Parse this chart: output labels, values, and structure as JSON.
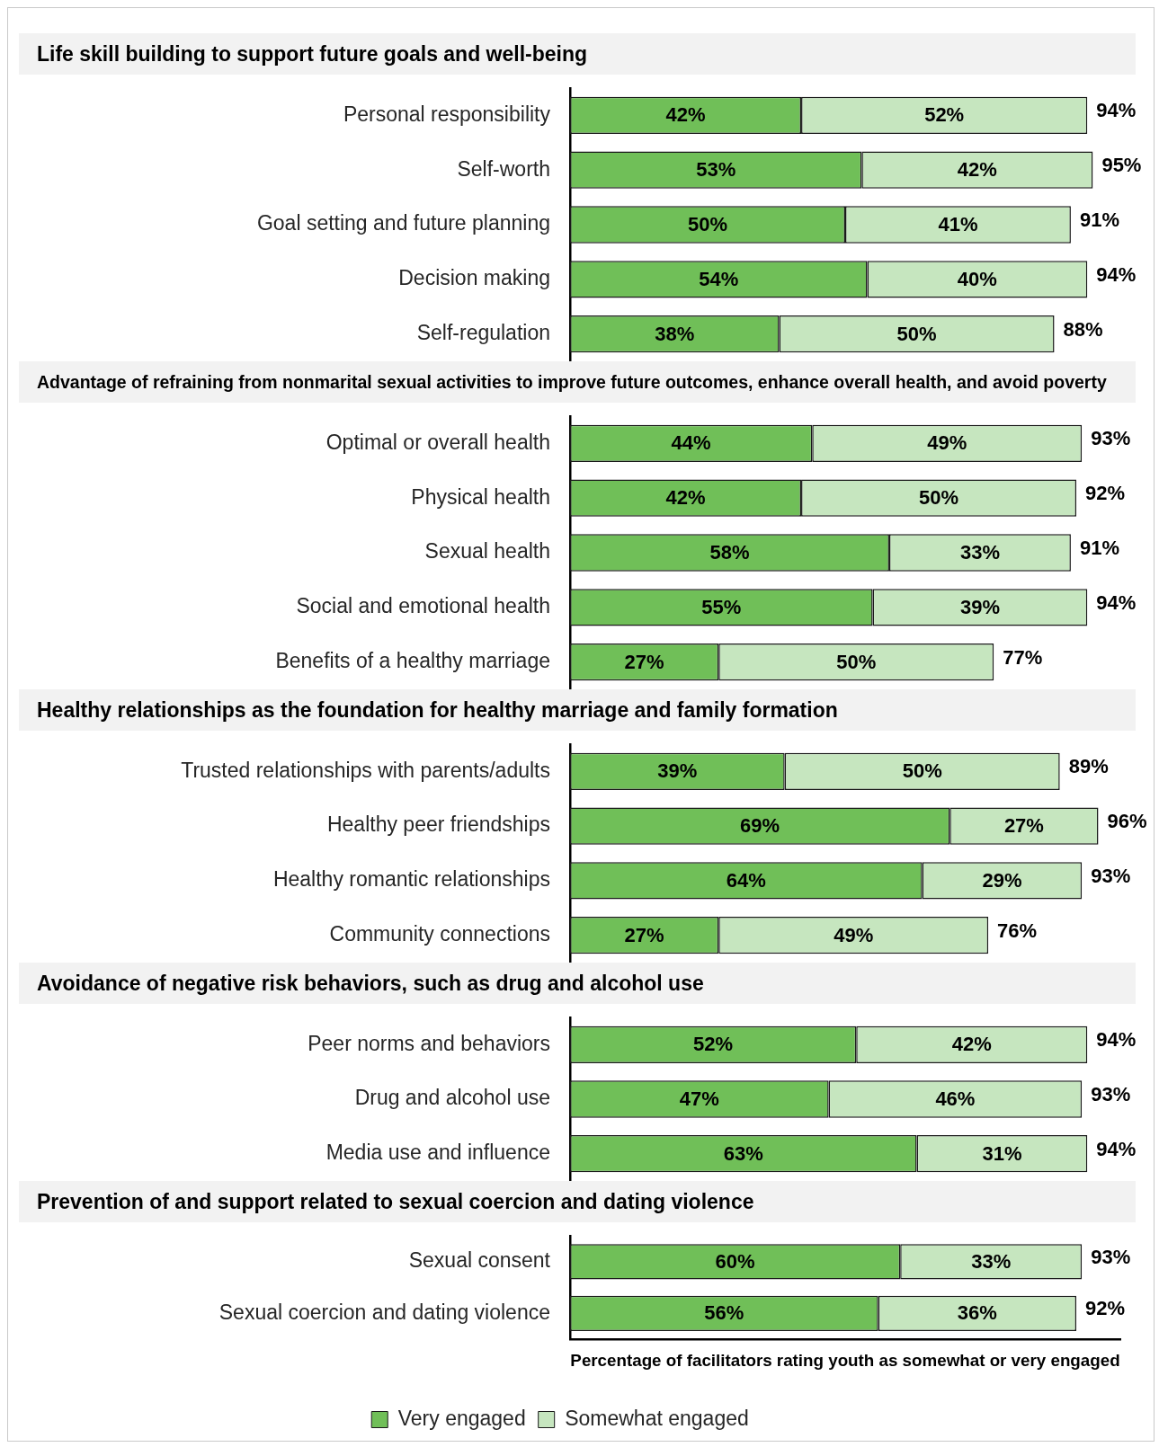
{
  "chart_data": [
    {
      "type": "bar",
      "orientation": "horizontal",
      "stacked": true,
      "title": "Life skill building to support future goals and well-being",
      "categories": [
        "Personal responsibility",
        "Self-worth",
        "Goal setting and future planning",
        "Decision making",
        "Self-regulation"
      ],
      "series": [
        {
          "color": "#70bf58",
          "values": [
            42,
            53,
            50,
            54,
            38
          ],
          "value_labels": [
            "42%",
            "53%",
            "50%",
            "54%",
            "38%"
          ]
        },
        {
          "color": "#c6e6bf",
          "values": [
            52,
            42,
            41,
            40,
            50
          ],
          "value_labels": [
            "52%",
            "42%",
            "41%",
            "40%",
            "50%"
          ]
        }
      ],
      "totals": [
        "94%",
        "95%",
        "91%",
        "94%",
        "88%"
      ],
      "tick_labels": "y",
      "grid": false,
      "legend": false
    },
    {
      "type": "bar",
      "orientation": "horizontal",
      "stacked": true,
      "title": "Advantage of refraining from nonmarital sexual activities to improve future outcomes, enhance overall health, and avoid poverty",
      "categories": [
        "Optimal or overall health",
        "Physical health",
        "Sexual health",
        "Social and emotional health",
        "Benefits of a healthy marriage"
      ],
      "series": [
        {
          "color": "#70bf58",
          "values": [
            44,
            42,
            58,
            55,
            27
          ],
          "value_labels": [
            "44%",
            "42%",
            "58%",
            "55%",
            "27%"
          ]
        },
        {
          "color": "#c6e6bf",
          "values": [
            49,
            50,
            33,
            39,
            50
          ],
          "value_labels": [
            "49%",
            "50%",
            "33%",
            "39%",
            "50%"
          ]
        }
      ],
      "totals": [
        "93%",
        "92%",
        "91%",
        "94%",
        "77%"
      ],
      "tick_labels": "y",
      "grid": false,
      "legend": false
    },
    {
      "type": "bar",
      "orientation": "horizontal",
      "stacked": true,
      "title": "Healthy relationships as the foundation for healthy marriage and family formation",
      "categories": [
        "Trusted relationships with parents/adults",
        "Healthy peer friendships",
        "Healthy romantic relationships",
        "Community connections"
      ],
      "series": [
        {
          "color": "#70bf58",
          "values": [
            39,
            69,
            64,
            27
          ],
          "value_labels": [
            "39%",
            "69%",
            "64%",
            "27%"
          ]
        },
        {
          "color": "#c6e6bf",
          "values": [
            50,
            27,
            29,
            49
          ],
          "value_labels": [
            "50%",
            "27%",
            "29%",
            "49%"
          ]
        }
      ],
      "totals": [
        "89%",
        "96%",
        "93%",
        "76%"
      ],
      "tick_labels": "y",
      "grid": false,
      "legend": false
    },
    {
      "type": "bar",
      "orientation": "horizontal",
      "stacked": true,
      "title": "Avoidance of negative risk behaviors, such as drug and alcohol use",
      "categories": [
        "Peer norms and behaviors",
        "Drug and alcohol use",
        "Media use and influence"
      ],
      "series": [
        {
          "color": "#70bf58",
          "values": [
            52,
            47,
            63
          ],
          "value_labels": [
            "52%",
            "47%",
            "63%"
          ]
        },
        {
          "color": "#c6e6bf",
          "values": [
            42,
            46,
            31
          ],
          "value_labels": [
            "42%",
            "46%",
            "31%"
          ]
        }
      ],
      "totals": [
        "94%",
        "93%",
        "94%"
      ],
      "tick_labels": "y",
      "grid": false,
      "legend": false
    },
    {
      "type": "bar",
      "orientation": "horizontal",
      "stacked": true,
      "title": "Prevention of and support related to sexual coercion and dating violence",
      "xlabel": "Percentage of facilitators rating youth as somewhat or very engaged",
      "categories": [
        "Sexual consent",
        "Sexual coercion and dating violence"
      ],
      "series": [
        {
          "name": "Very engaged",
          "color": "#70bf58",
          "values": [
            60,
            56
          ],
          "value_labels": [
            "60%",
            "56%"
          ]
        },
        {
          "name": "Somewhat engaged",
          "color": "#c6e6bf",
          "values": [
            33,
            36
          ],
          "value_labels": [
            "33%",
            "36%"
          ]
        }
      ],
      "totals": [
        "93%",
        "92%"
      ],
      "xlim": [
        0,
        100
      ],
      "tick_labels": "y",
      "grid": false,
      "legend": "bottom"
    }
  ]
}
